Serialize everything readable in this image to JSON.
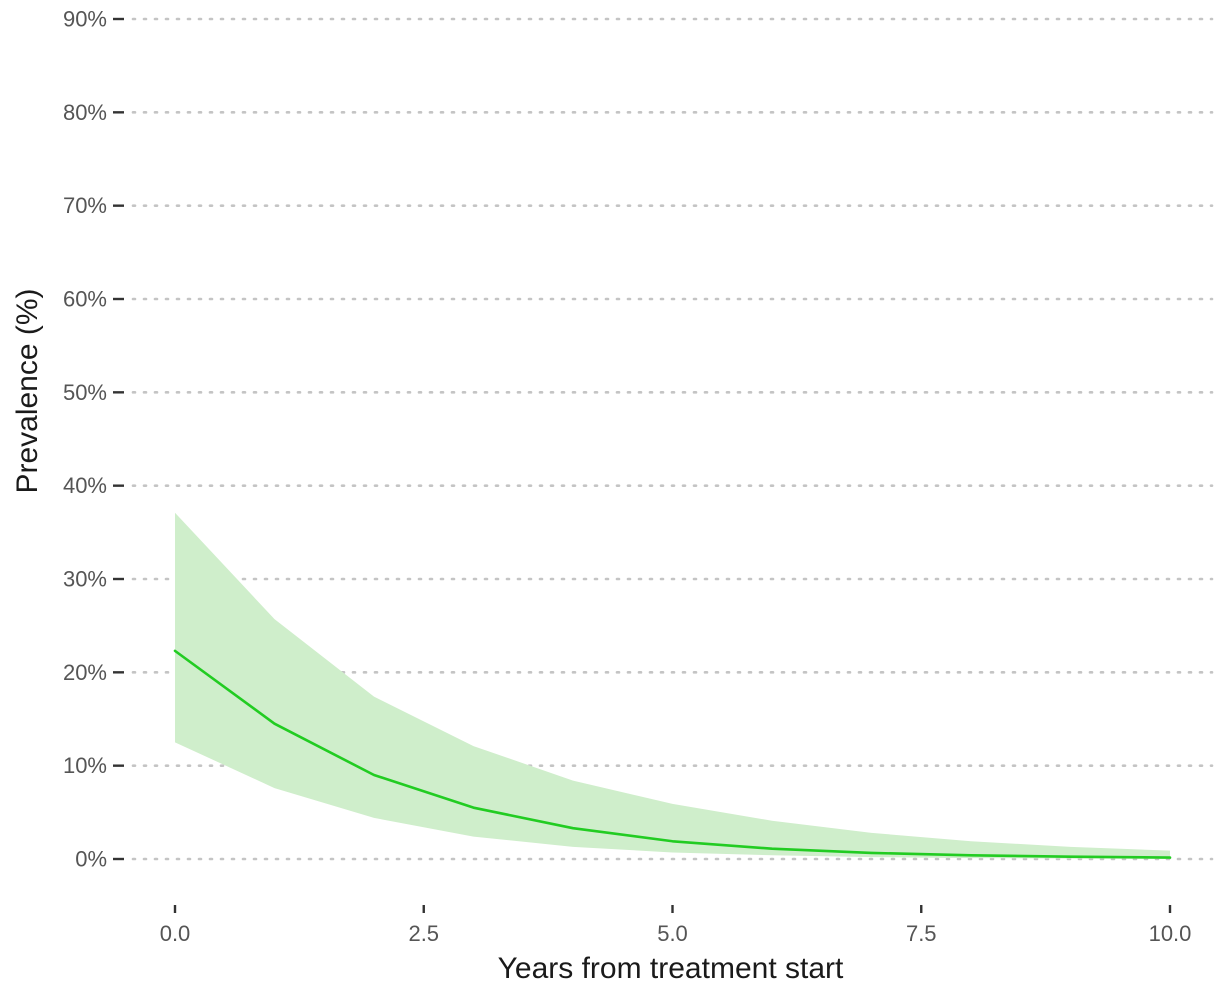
{
  "chart_data": {
    "type": "line",
    "title": "",
    "xlabel": "Years from treatment start",
    "ylabel": "Prevalence (%)",
    "xlim": [
      0,
      10
    ],
    "ylim": [
      0,
      90
    ],
    "x_ticks": [
      0,
      2.5,
      5,
      7.5,
      10
    ],
    "x_tick_labels": [
      "0.0",
      "2.5",
      "5.0",
      "7.5",
      "10.0"
    ],
    "y_ticks": [
      0,
      10,
      20,
      30,
      40,
      50,
      60,
      70,
      80,
      90
    ],
    "y_tick_labels": [
      "0%",
      "10%",
      "20%",
      "30%",
      "40%",
      "50%",
      "60%",
      "70%",
      "80%",
      "90%"
    ],
    "grid": "horizontal dotted",
    "legend": "none",
    "colors": {
      "line": "#22cc22",
      "ribbon": "#cfeecb",
      "grid": "#c4c4c4",
      "tick_label": "#555555",
      "axis_title": "#1a1a1a"
    },
    "series": [
      {
        "x": [
          0,
          1,
          2,
          3,
          4,
          5,
          6,
          7,
          8,
          9,
          10
        ],
        "y": [
          22.3,
          14.5,
          9.0,
          5.5,
          3.3,
          1.9,
          1.1,
          0.65,
          0.4,
          0.25,
          0.15
        ],
        "lower": [
          12.5,
          7.6,
          4.4,
          2.4,
          1.3,
          0.7,
          0.4,
          0.2,
          0.1,
          0.05,
          0.02
        ],
        "upper": [
          37.1,
          25.7,
          17.4,
          12.1,
          8.4,
          5.9,
          4.1,
          2.8,
          1.9,
          1.3,
          0.9
        ]
      }
    ]
  }
}
